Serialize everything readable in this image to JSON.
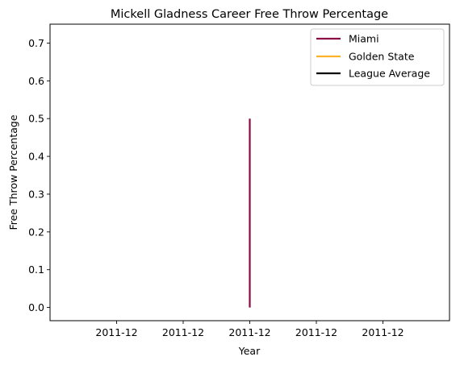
{
  "chart_data": {
    "type": "line",
    "title": "Mickell Gladness Career Free Throw Percentage",
    "xlabel": "Year",
    "ylabel": "Free Throw Percentage",
    "x_tick_labels": [
      "2011-12",
      "2011-12",
      "2011-12",
      "2011-12",
      "2011-12"
    ],
    "y_ticks": [
      0.0,
      0.1,
      0.2,
      0.3,
      0.4,
      0.5,
      0.6,
      0.7
    ],
    "y_tick_labels": [
      "0.0",
      "0.1",
      "0.2",
      "0.3",
      "0.4",
      "0.5",
      "0.6",
      "0.7"
    ],
    "ylim": [
      -0.035,
      0.75
    ],
    "grid": false,
    "legend_position": "upper-right",
    "series": [
      {
        "name": "Miami",
        "color": "#8B0A43",
        "points": [
          {
            "x": "2011-12",
            "y": 0.0
          },
          {
            "x": "2011-12",
            "y": 0.5
          }
        ]
      },
      {
        "name": "Golden State",
        "color": "#FDB22A",
        "points": []
      },
      {
        "name": "League Average",
        "color": "#000000",
        "points": []
      }
    ]
  }
}
